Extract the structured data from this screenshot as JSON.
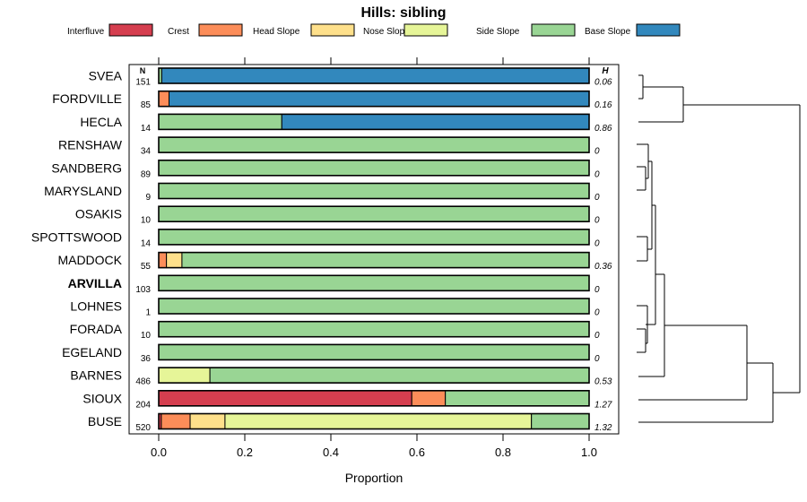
{
  "chart_data": {
    "type": "bar",
    "stacked": true,
    "orientation": "horizontal",
    "title": "Hills: sibling",
    "xlabel": "Proportion",
    "xlim": [
      0,
      1
    ],
    "xticks": [
      0.0,
      0.2,
      0.4,
      0.6,
      0.8,
      1.0
    ],
    "xtick_labels": [
      "0.0",
      "0.2",
      "0.4",
      "0.6",
      "0.8",
      "1.0"
    ],
    "n_header": "N",
    "h_header": "H",
    "highlight": "ARVILLA",
    "legend": [
      {
        "name": "Interfluve",
        "color": "#d53e4f"
      },
      {
        "name": "Crest",
        "color": "#fc8d59"
      },
      {
        "name": "Head Slope",
        "color": "#fee08b"
      },
      {
        "name": "Nose Slope",
        "color": "#e6f598"
      },
      {
        "name": "Side Slope",
        "color": "#99d594"
      },
      {
        "name": "Base Slope",
        "color": "#3288bd"
      }
    ],
    "categories": [
      "SVEA",
      "FORDVILLE",
      "HECLA",
      "RENSHAW",
      "SANDBERG",
      "MARYSLAND",
      "OSAKIS",
      "SPOTTSWOOD",
      "MADDOCK",
      "ARVILLA",
      "LOHNES",
      "FORADA",
      "EGELAND",
      "BARNES",
      "SIOUX",
      "BUSE"
    ],
    "n": [
      "151",
      "85",
      "14",
      "34",
      "89",
      "9",
      "10",
      "14",
      "55",
      "103",
      "1",
      "10",
      "36",
      "486",
      "204",
      "520"
    ],
    "h": [
      "0.06",
      "0.16",
      "0.86",
      "0",
      "0",
      "0",
      "0",
      "0",
      "0.36",
      "0",
      "0",
      "0",
      "0",
      "0.53",
      "1.27",
      "1.32"
    ],
    "series": [
      {
        "name": "Interfluve",
        "values": [
          0,
          0,
          0,
          0,
          0,
          0,
          0,
          0,
          0,
          0,
          0,
          0,
          0,
          0,
          0.588,
          0.006
        ]
      },
      {
        "name": "Crest",
        "values": [
          0,
          0.024,
          0,
          0,
          0,
          0,
          0,
          0,
          0.018,
          0,
          0,
          0,
          0,
          0,
          0.078,
          0.067
        ]
      },
      {
        "name": "Head Slope",
        "values": [
          0,
          0,
          0,
          0,
          0,
          0,
          0,
          0,
          0.036,
          0,
          0,
          0,
          0,
          0,
          0,
          0.081
        ]
      },
      {
        "name": "Nose Slope",
        "values": [
          0,
          0,
          0,
          0,
          0,
          0,
          0,
          0,
          0,
          0,
          0,
          0,
          0,
          0.119,
          0,
          0.712
        ]
      },
      {
        "name": "Side Slope",
        "values": [
          0.007,
          0,
          0.286,
          1,
          1,
          1,
          1,
          1,
          0.946,
          1,
          1,
          1,
          1,
          0.881,
          0.334,
          0.134
        ]
      },
      {
        "name": "Base Slope",
        "values": [
          0.993,
          0.976,
          0.714,
          0,
          0,
          0,
          0,
          0,
          0,
          0,
          0,
          0,
          0,
          0,
          0,
          0
        ]
      }
    ],
    "dendrogram": [
      {
        "left": "SVEA",
        "right": "FORDVILLE",
        "height": 0.06
      },
      {
        "left": "SVEA+FORDVILLE",
        "right": "HECLA",
        "height": 0.55
      },
      {
        "left": "RENSHAW..EGELAND",
        "right": "BARNES",
        "height": 0.38
      },
      {
        "left": "RENSHAW..BARNES",
        "right": "SIOUX",
        "height": 1.36
      },
      {
        "left": "RENSHAW..SIOUX",
        "right": "BUSE",
        "height": 1.66
      },
      {
        "left": "SVEA+FORDVILLE+HECLA",
        "right": "RENSHAW..BUSE",
        "height": 1.79
      }
    ]
  }
}
